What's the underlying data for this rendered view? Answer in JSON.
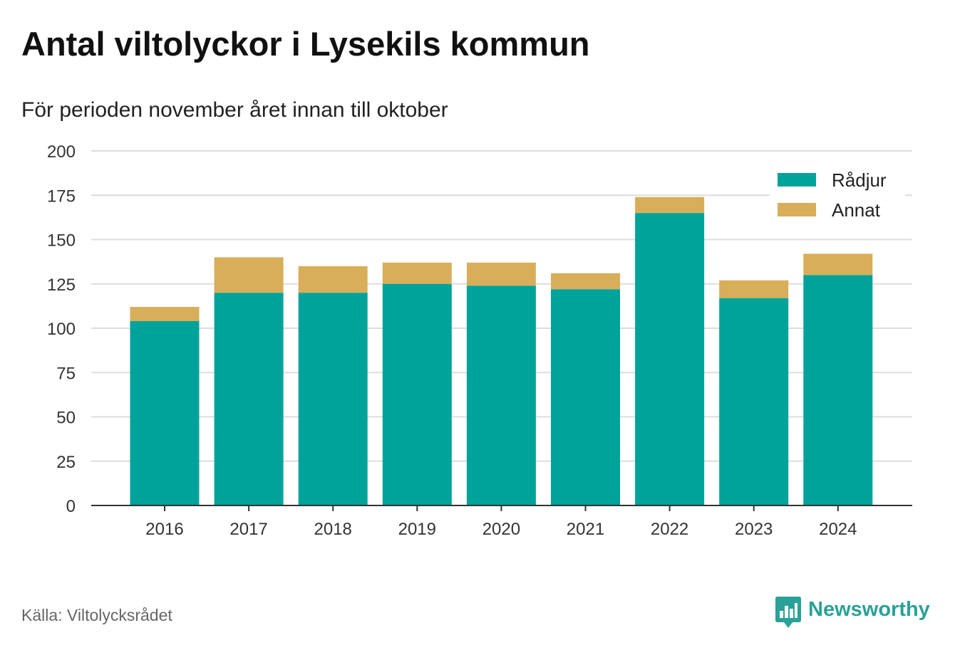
{
  "header": {
    "title": "Antal viltolyckor i Lysekils kommun",
    "subtitle": "För perioden november året innan till oktober"
  },
  "footer": {
    "source": "Källa: Viltolycksrådet",
    "brand": "Newsworthy",
    "brand_icon": "bar-chart-speech-bubble-icon"
  },
  "colors": {
    "radjur": "#00a39a",
    "annat": "#d8ae5a",
    "grid": "#dddddd",
    "axis": "#333333",
    "brand": "#2aa198"
  },
  "chart_data": {
    "type": "bar",
    "stacked": true,
    "title": "",
    "xlabel": "",
    "ylabel": "",
    "categories": [
      "2016",
      "2017",
      "2018",
      "2019",
      "2020",
      "2021",
      "2022",
      "2023",
      "2024"
    ],
    "series": [
      {
        "name": "Rådjur",
        "color": "#00a39a",
        "values": [
          104,
          120,
          120,
          125,
          124,
          122,
          165,
          117,
          130
        ]
      },
      {
        "name": "Annat",
        "color": "#d8ae5a",
        "values": [
          8,
          20,
          15,
          12,
          13,
          9,
          9,
          10,
          12
        ]
      }
    ],
    "ylim": [
      0,
      200
    ],
    "yticks": [
      0,
      25,
      50,
      75,
      100,
      125,
      150,
      175,
      200
    ],
    "grid": true,
    "legend_position": "top-right"
  }
}
